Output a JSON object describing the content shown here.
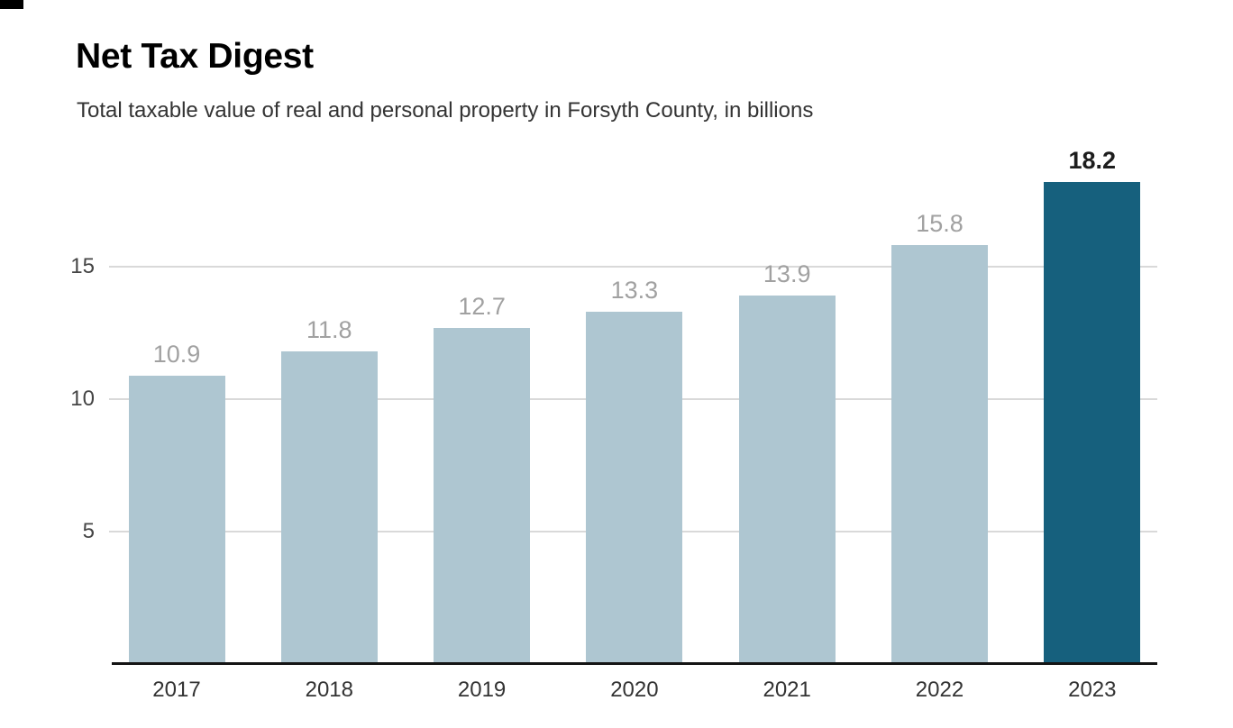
{
  "header": {
    "title": "Net Tax Digest",
    "subtitle": "Total taxable value of real and personal property in Forsyth County, in billions"
  },
  "chart_data": {
    "type": "bar",
    "categories": [
      "2017",
      "2018",
      "2019",
      "2020",
      "2021",
      "2022",
      "2023"
    ],
    "values": [
      10.9,
      11.8,
      12.7,
      13.3,
      13.9,
      15.8,
      18.2
    ],
    "title": "Net Tax Digest",
    "subtitle": "Total taxable value of real and personal property in Forsyth County, in billions",
    "xlabel": "",
    "ylabel": "",
    "yticks": [
      5,
      10,
      15
    ],
    "ylim": [
      0,
      19.6
    ],
    "grid": true,
    "legend": false,
    "value_labels_shown": true,
    "highlight": {
      "category": "2023",
      "index": 6
    },
    "colors": {
      "bar_default": "#aec6d1",
      "bar_highlight": "#16607d",
      "gridline": "#d9d9d9",
      "axis_line": "#141414",
      "value_label": "#a1a1a1",
      "value_label_highlight": "#1d1d1d",
      "y_tick_label": "#454545",
      "x_tick_label": "#333333"
    }
  }
}
